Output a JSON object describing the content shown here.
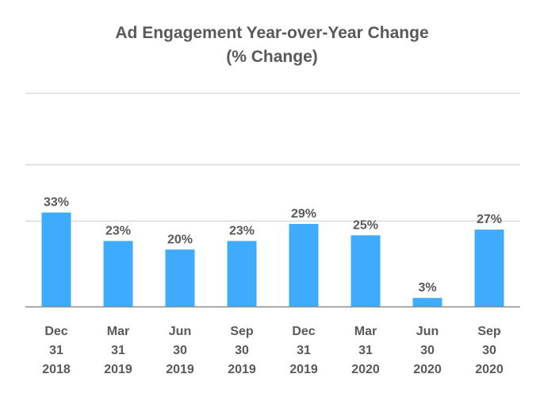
{
  "chart_data": {
    "type": "bar",
    "title_lines": [
      "Ad Engagement Year-over-Year Change",
      "(% Change)"
    ],
    "categories": [
      [
        "Dec",
        "31",
        "2018"
      ],
      [
        "Mar",
        "31",
        "2019"
      ],
      [
        "Jun",
        "30",
        "2019"
      ],
      [
        "Sep",
        "30",
        "2019"
      ],
      [
        "Dec",
        "31",
        "2019"
      ],
      [
        "Mar",
        "31",
        "2020"
      ],
      [
        "Jun",
        "30",
        "2020"
      ],
      [
        "Sep",
        "30",
        "2020"
      ]
    ],
    "values": [
      33,
      23,
      20,
      23,
      29,
      25,
      3,
      27
    ],
    "data_labels": [
      "33%",
      "23%",
      "20%",
      "23%",
      "29%",
      "25%",
      "3%",
      "27%"
    ],
    "ylim": [
      0,
      75
    ],
    "grid_values": [
      30,
      50,
      75
    ],
    "xlabel": "",
    "ylabel": "",
    "bar_color": "#3fabff",
    "grid_color": "#d9d9d9",
    "axis_color": "#8c8c8c",
    "text_color": "#595959"
  }
}
